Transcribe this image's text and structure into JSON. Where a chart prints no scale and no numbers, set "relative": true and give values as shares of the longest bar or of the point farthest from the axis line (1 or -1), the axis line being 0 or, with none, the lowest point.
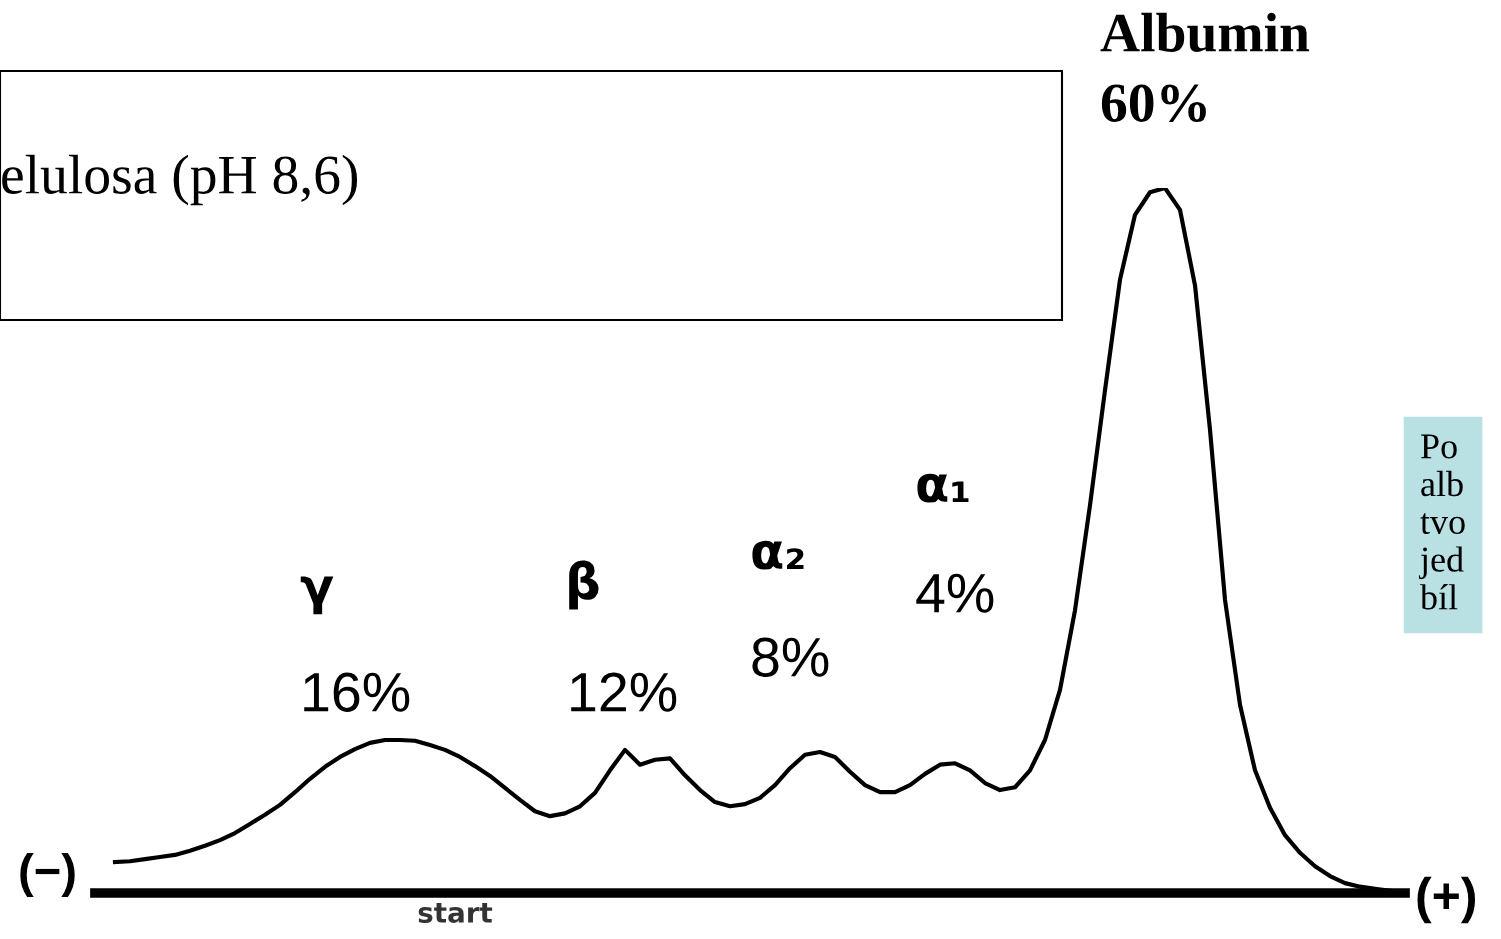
{
  "chart_data": {
    "type": "line",
    "relative": true,
    "title": "elulosa (pH 8,6)",
    "xlabel": "start",
    "categories": [
      null,
      null,
      null,
      null,
      null,
      null,
      null,
      null,
      null,
      null,
      null,
      null,
      null,
      null,
      null,
      null,
      null,
      null,
      null,
      null,
      null,
      null,
      null,
      null,
      null,
      null,
      null,
      null,
      null,
      null,
      null,
      null,
      null,
      null,
      null,
      null,
      null,
      null,
      null,
      null,
      null,
      null,
      null,
      null,
      null,
      null,
      null,
      null,
      null,
      null,
      null,
      null,
      null,
      null,
      null,
      null,
      null,
      null,
      null,
      null,
      null,
      null,
      null,
      null,
      null,
      null,
      null,
      null,
      null,
      null,
      null,
      null,
      null,
      null,
      null,
      null,
      null,
      null,
      null,
      null,
      null,
      null,
      null,
      null,
      null,
      null
    ],
    "series": [
      {
        "color": "#000000",
        "values": [
          0.044,
          0.045,
          0.048,
          0.051,
          0.054,
          0.06,
          0.067,
          0.075,
          0.085,
          0.098,
          0.111,
          0.125,
          0.143,
          0.162,
          0.179,
          0.193,
          0.204,
          0.213,
          0.217,
          0.217,
          0.216,
          0.21,
          0.203,
          0.193,
          0.18,
          0.166,
          0.149,
          0.132,
          0.116,
          0.109,
          0.113,
          0.123,
          0.142,
          0.174,
          0.203,
          0.182,
          0.189,
          0.191,
          0.167,
          0.146,
          0.129,
          0.123,
          0.126,
          0.135,
          0.153,
          0.177,
          0.196,
          0.2,
          0.193,
          0.172,
          0.153,
          0.143,
          0.143,
          0.153,
          0.169,
          0.182,
          0.184,
          0.174,
          0.156,
          0.146,
          0.15,
          0.174,
          0.217,
          0.288,
          0.401,
          0.55,
          0.713,
          0.87,
          0.962,
          0.994,
          1.0,
          0.969,
          0.862,
          0.657,
          0.416,
          0.267,
          0.174,
          0.121,
          0.082,
          0.057,
          0.038,
          0.024,
          0.014,
          0.009,
          0.006,
          0.003
        ]
      }
    ],
    "annotations": [
      "(−)",
      "(+)",
      "γ",
      "16%",
      "β",
      "12%",
      "α₂",
      "8%",
      "α₁",
      "4%",
      "Albumin",
      "60%",
      "Po\nalb\ntvo\njed\nbíl"
    ],
    "grid": false,
    "legend": false,
    "marker": "none",
    "line_style": "solid"
  }
}
